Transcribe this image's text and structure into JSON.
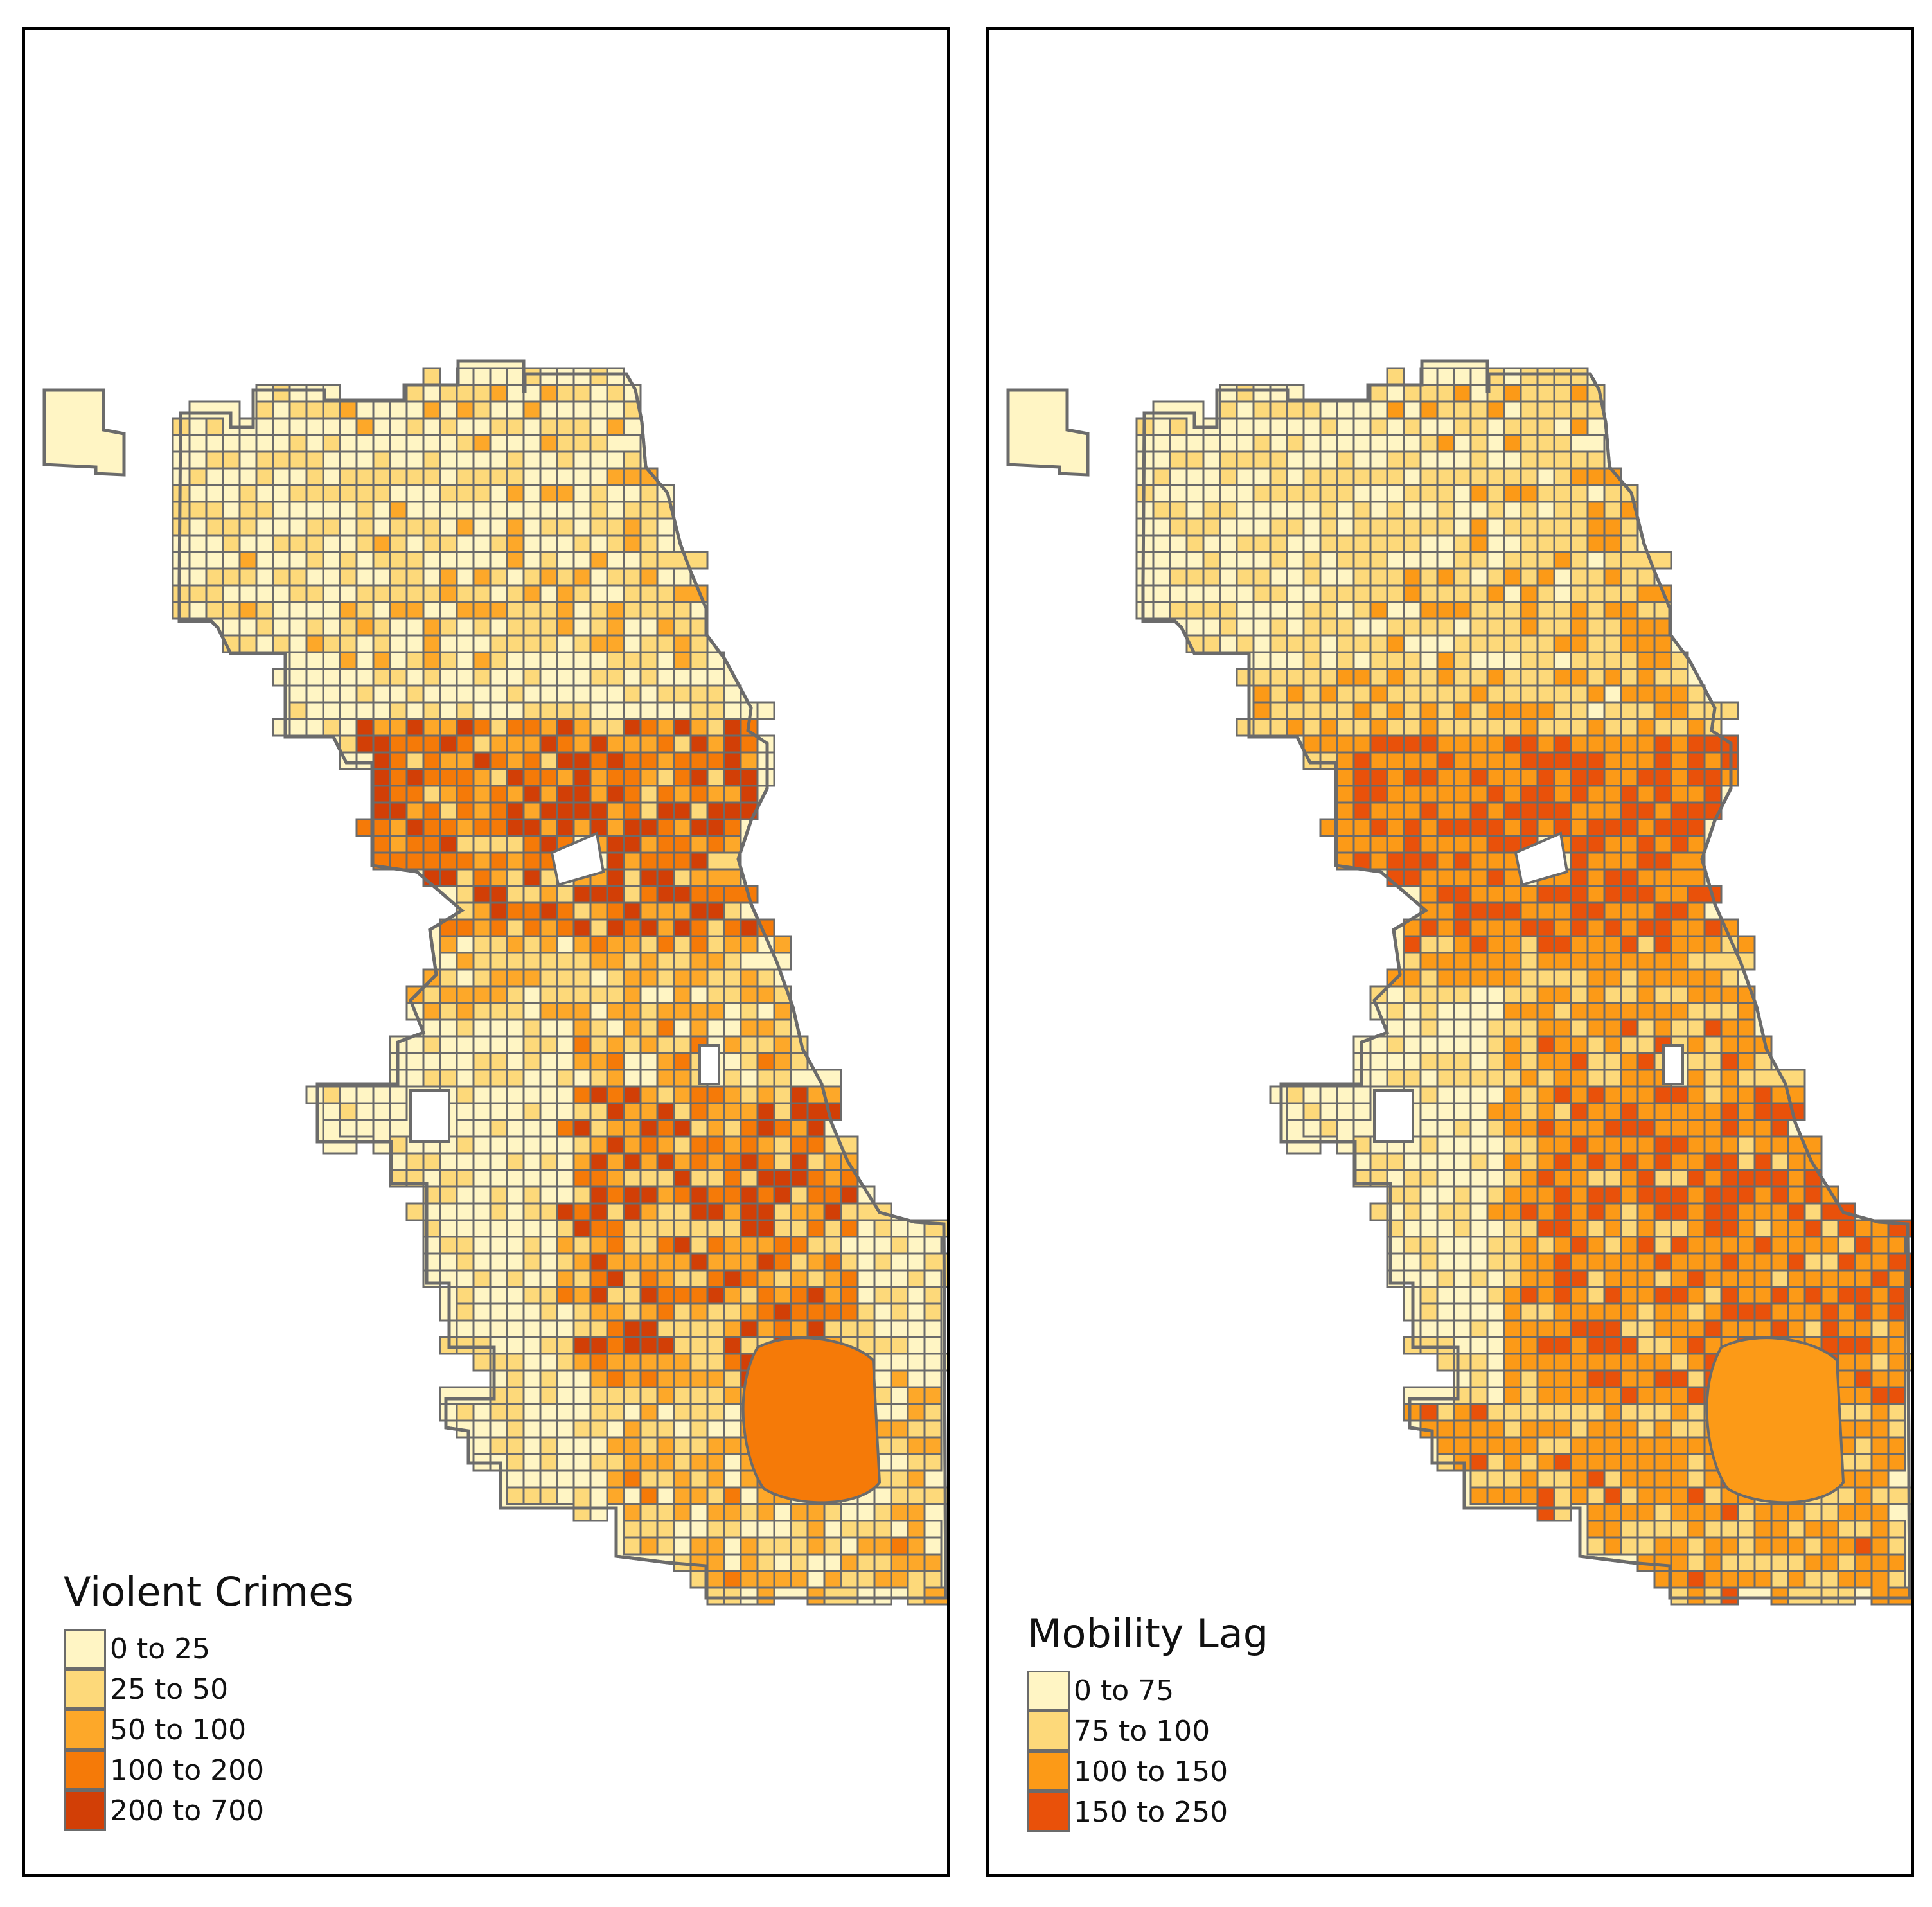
{
  "maps": [
    {
      "legend": {
        "title": "Violent Crimes",
        "items": [
          {
            "label": "0 to 25",
            "color": "#FFF5C4"
          },
          {
            "label": "25 to 50",
            "color": "#FDD97A"
          },
          {
            "label": "50 to 100",
            "color": "#FDA829"
          },
          {
            "label": "100 to 200",
            "color": "#F57A08"
          },
          {
            "label": "200 to 700",
            "color": "#D23F06"
          }
        ]
      }
    },
    {
      "legend": {
        "title": "Mobility Lag",
        "items": [
          {
            "label": "0 to 75",
            "color": "#FFF5C4"
          },
          {
            "label": "75 to 100",
            "color": "#FDD97A"
          },
          {
            "label": "100 to 150",
            "color": "#FC9A17"
          },
          {
            "label": "150 to 250",
            "color": "#E9510A"
          }
        ]
      }
    }
  ],
  "colors": {
    "tract_border": "#6B6B6B",
    "frame": "#000000",
    "background": "#FFFFFF"
  }
}
